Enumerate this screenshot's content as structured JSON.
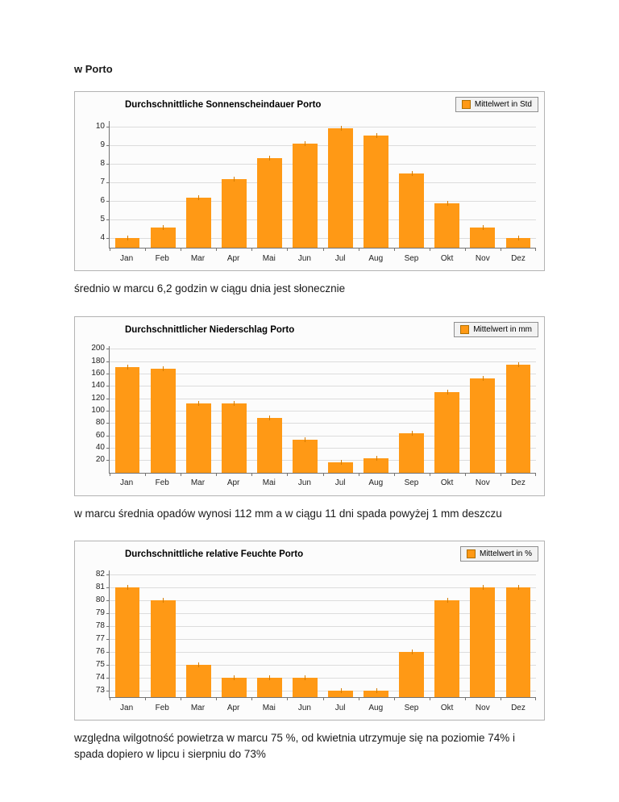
{
  "page": {
    "heading": "w Porto",
    "captions": [
      "średnio w marcu 6,2 godzin w ciągu dnia jest słonecznie",
      "w marcu średnia opadów wynosi 112 mm a w ciągu 11 dni spada powyżej 1 mm deszczu",
      "względna wilgotność powietrza w marcu 75 %, od kwietnia utrzymuje się na poziomie 74% i spada dopiero w lipcu i sierpniu do 73%"
    ]
  },
  "colors": {
    "bar": "#FF9915",
    "bar_marker": "#d47b00",
    "grid": "#dcdcdc",
    "axis": "#737373"
  },
  "chart_data": [
    {
      "type": "bar",
      "title": "Durchschnittliche Sonnenscheindauer Porto",
      "legend": "Mittelwert in Std",
      "categories": [
        "Jan",
        "Feb",
        "Mar",
        "Apr",
        "Mai",
        "Jun",
        "Jul",
        "Aug",
        "Sep",
        "Okt",
        "Nov",
        "Dez"
      ],
      "values": [
        4.0,
        4.6,
        6.2,
        7.2,
        8.3,
        9.1,
        9.9,
        9.5,
        7.5,
        5.9,
        4.6,
        4.0
      ],
      "ylim": [
        3.5,
        10.3
      ],
      "yticks": [
        4,
        5,
        6,
        7,
        8,
        9,
        10
      ],
      "xlabel": "",
      "ylabel": "",
      "legend_position": "top-right",
      "grid": true
    },
    {
      "type": "bar",
      "title": "Durchschnittlicher Niederschlag Porto",
      "legend": "Mittelwert in mm",
      "categories": [
        "Jan",
        "Feb",
        "Mar",
        "Apr",
        "Mai",
        "Jun",
        "Jul",
        "Aug",
        "Sep",
        "Okt",
        "Nov",
        "Dez"
      ],
      "values": [
        170,
        168,
        112,
        112,
        88,
        53,
        17,
        23,
        64,
        130,
        152,
        175
      ],
      "ylim": [
        0,
        205
      ],
      "yticks": [
        20,
        40,
        60,
        80,
        100,
        120,
        140,
        160,
        180,
        200
      ],
      "xlabel": "",
      "ylabel": "",
      "legend_position": "top-right",
      "grid": true
    },
    {
      "type": "bar",
      "title": "Durchschnittliche relative Feuchte Porto",
      "legend": "Mittelwert in %",
      "categories": [
        "Jan",
        "Feb",
        "Mar",
        "Apr",
        "Mai",
        "Jun",
        "Jul",
        "Aug",
        "Sep",
        "Okt",
        "Nov",
        "Dez"
      ],
      "values": [
        81,
        80,
        75,
        74,
        74,
        74,
        73,
        73,
        76,
        80,
        81,
        81
      ],
      "ylim": [
        72.5,
        82.3
      ],
      "yticks": [
        73,
        74,
        75,
        76,
        77,
        78,
        79,
        80,
        81,
        82
      ],
      "xlabel": "",
      "ylabel": "",
      "legend_position": "top-right",
      "grid": true
    }
  ]
}
